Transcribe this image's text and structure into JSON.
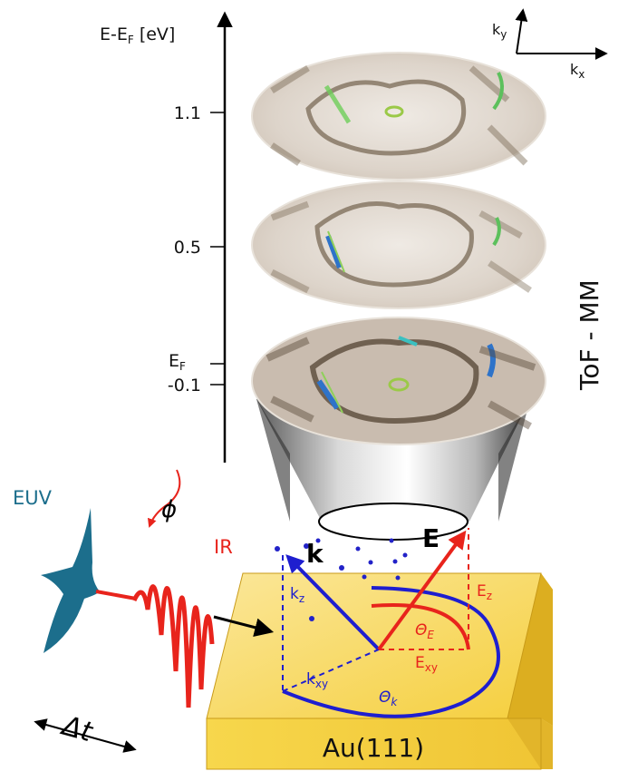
{
  "axis": {
    "label_main": "E-E",
    "label_sub": "F",
    "label_unit": " [eV]",
    "ticks": [
      {
        "text": "1.1"
      },
      {
        "text": "0.5"
      },
      {
        "text": "-0.1"
      }
    ],
    "ef_main": "E",
    "ef_sub": "F"
  },
  "k_axes": {
    "ky_main": "k",
    "ky_sub": "y",
    "kx_main": "k",
    "kx_sub": "x"
  },
  "detector": {
    "label": "ToF - MM"
  },
  "pulses": {
    "euv_label": "EUV",
    "ir_label": "IR",
    "phase_label": "ϕ",
    "delay_label": "Δt"
  },
  "vectors": {
    "k_label": "k",
    "e_label": "E",
    "kz_main": "k",
    "kz_sub": "z",
    "kxy_main": "k",
    "kxy_sub": "xy",
    "ez_main": "E",
    "ez_sub": "z",
    "exy_main": "E",
    "exy_sub": "xy",
    "theta_e_main": "Θ",
    "theta_e_sub": "E",
    "theta_k_main": "Θ",
    "theta_k_sub": "k"
  },
  "sample": {
    "label": "Au(111)"
  },
  "colors": {
    "k_blue": "#1e1ecf",
    "e_red": "#e8241c",
    "euv_teal": "#1c6e8c",
    "gold": "#f7d54a",
    "gold_dark": "#e0b52a",
    "map_brown": "#7a6a55"
  }
}
